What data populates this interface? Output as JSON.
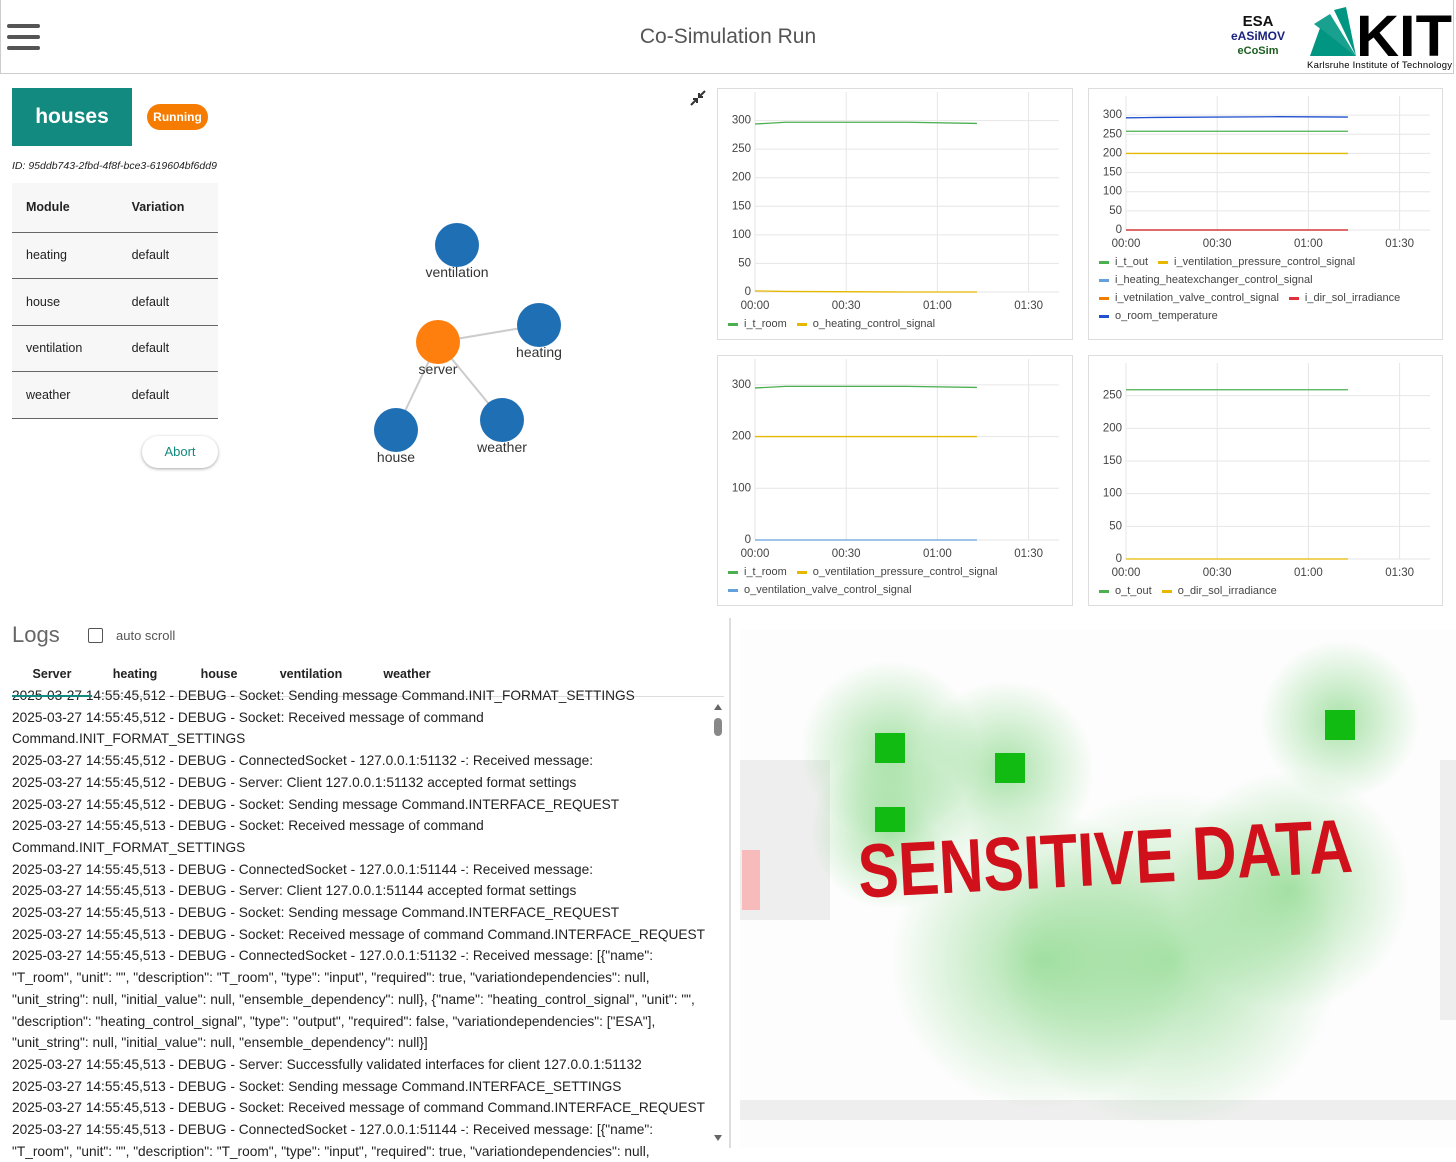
{
  "header": {
    "title": "Co-Simulation Run",
    "logo_esa": {
      "lines": [
        "ESA",
        "eASiMOV",
        "eCoSim"
      ]
    },
    "logo_kit": {
      "name": "KIT",
      "caption": "Karlsruhe Institute of Technology"
    }
  },
  "run": {
    "name": "houses",
    "status": "Running",
    "id": "ID: 95ddb743-2fbd-4f8f-bce3-619604bf6dd9",
    "table": {
      "columns": [
        "Module",
        "Variation"
      ],
      "rows": [
        [
          "heating",
          "default"
        ],
        [
          "house",
          "default"
        ],
        [
          "ventilation",
          "default"
        ],
        [
          "weather",
          "default"
        ]
      ]
    },
    "abort": "Abort"
  },
  "graph": {
    "nodes": [
      {
        "label": "ventilation",
        "color": "#1f6fb5"
      },
      {
        "label": "heating",
        "color": "#1f6fb5"
      },
      {
        "label": "server",
        "color": "#ff7f0e"
      },
      {
        "label": "house",
        "color": "#1f6fb5"
      },
      {
        "label": "weather",
        "color": "#1f6fb5"
      }
    ]
  },
  "charts": [
    {
      "type": "line",
      "xlim": [
        0,
        100
      ],
      "xticks": [
        {
          "value": 0,
          "label": "00:00"
        },
        {
          "value": 30,
          "label": "00:30"
        },
        {
          "value": 60,
          "label": "01:00"
        },
        {
          "value": 90,
          "label": "01:30"
        }
      ],
      "ylim": [
        0,
        350
      ],
      "yticks": [
        0,
        50,
        100,
        150,
        200,
        250,
        300
      ],
      "grid": true,
      "x": [
        0,
        10,
        50,
        73
      ],
      "series": [
        {
          "name": "i_t_room",
          "color": "#4caf50",
          "values": [
            294,
            297,
            297,
            295
          ]
        },
        {
          "name": "o_heating_control_signal",
          "color": "#e6b800",
          "values": [
            2,
            1,
            0,
            0
          ]
        }
      ]
    },
    {
      "type": "line",
      "xlim": [
        0,
        100
      ],
      "xticks": [
        {
          "value": 0,
          "label": "00:00"
        },
        {
          "value": 30,
          "label": "00:30"
        },
        {
          "value": 60,
          "label": "01:00"
        },
        {
          "value": 90,
          "label": "01:30"
        }
      ],
      "ylim": [
        0,
        350
      ],
      "yticks": [
        0,
        50,
        100,
        150,
        200,
        250,
        300
      ],
      "grid": true,
      "x": [
        0,
        10,
        50,
        73
      ],
      "series": [
        {
          "name": "i_t_out",
          "color": "#4caf50",
          "values": [
            258,
            258,
            258,
            258
          ]
        },
        {
          "name": "i_ventilation_pressure_control_signal",
          "color": "#e6b800",
          "values": [
            200,
            200,
            200,
            200
          ]
        },
        {
          "name": "i_heating_heatexchanger_control_signal",
          "color": "#64a0dc",
          "values": [
            0,
            0,
            0,
            0
          ]
        },
        {
          "name": "i_vetnilation_valve_control_signal",
          "color": "#f07c00",
          "values": [
            0,
            0,
            0,
            0
          ]
        },
        {
          "name": "i_dir_sol_irradiance",
          "color": "#e0303c",
          "values": [
            0,
            0,
            0,
            0
          ]
        },
        {
          "name": "o_room_temperature",
          "color": "#2050d0",
          "values": [
            293,
            294,
            296,
            295
          ]
        }
      ]
    },
    {
      "type": "line",
      "xlim": [
        0,
        100
      ],
      "xticks": [
        {
          "value": 0,
          "label": "00:00"
        },
        {
          "value": 30,
          "label": "00:30"
        },
        {
          "value": 60,
          "label": "01:00"
        },
        {
          "value": 90,
          "label": "01:30"
        }
      ],
      "ylim": [
        0,
        350
      ],
      "yticks": [
        0,
        100,
        200,
        300
      ],
      "grid": true,
      "x": [
        0,
        10,
        50,
        73
      ],
      "series": [
        {
          "name": "i_t_room",
          "color": "#4caf50",
          "values": [
            294,
            297,
            297,
            295
          ]
        },
        {
          "name": "o_ventilation_pressure_control_signal",
          "color": "#e6b800",
          "values": [
            200,
            200,
            200,
            200
          ]
        },
        {
          "name": "o_ventilation_valve_control_signal",
          "color": "#64a0dc",
          "values": [
            0,
            0,
            0,
            0
          ]
        }
      ]
    },
    {
      "type": "line",
      "xlim": [
        0,
        100
      ],
      "xticks": [
        {
          "value": 0,
          "label": "00:00"
        },
        {
          "value": 30,
          "label": "00:30"
        },
        {
          "value": 60,
          "label": "01:00"
        },
        {
          "value": 90,
          "label": "01:30"
        }
      ],
      "ylim": [
        0,
        300
      ],
      "yticks": [
        0,
        50,
        100,
        150,
        200,
        250
      ],
      "grid": true,
      "x": [
        0,
        10,
        50,
        73
      ],
      "series": [
        {
          "name": "o_t_out",
          "color": "#4caf50",
          "values": [
            259,
            259,
            259,
            259
          ]
        },
        {
          "name": "o_dir_sol_irradiance",
          "color": "#e6b800",
          "values": [
            0,
            0,
            0,
            0
          ]
        }
      ]
    }
  ],
  "logs": {
    "title": "Logs",
    "auto_scroll": "auto scroll",
    "tabs": [
      "Server",
      "heating",
      "house",
      "ventilation",
      "weather"
    ],
    "active_tab": 0,
    "lines": [
      "2025-03-27 14:55:45,512 - DEBUG - Socket: Sending message Command.INIT_FORMAT_SETTINGS",
      "2025-03-27 14:55:45,512 - DEBUG - Socket: Received message of command Command.INIT_FORMAT_SETTINGS",
      "2025-03-27 14:55:45,512 - DEBUG - ConnectedSocket - 127.0.0.1:51132 -: Received message:",
      "2025-03-27 14:55:45,512 - DEBUG - Server: Client 127.0.0.1:51132 accepted format settings",
      "2025-03-27 14:55:45,512 - DEBUG - Socket: Sending message Command.INTERFACE_REQUEST",
      "2025-03-27 14:55:45,513 - DEBUG - Socket: Received message of command Command.INIT_FORMAT_SETTINGS",
      "2025-03-27 14:55:45,513 - DEBUG - ConnectedSocket - 127.0.0.1:51144 -: Received message:",
      "2025-03-27 14:55:45,513 - DEBUG - Server: Client 127.0.0.1:51144 accepted format settings",
      "2025-03-27 14:55:45,513 - DEBUG - Socket: Sending message Command.INTERFACE_REQUEST",
      "2025-03-27 14:55:45,513 - DEBUG - Socket: Received message of command Command.INTERFACE_REQUEST",
      "2025-03-27 14:55:45,513 - DEBUG - ConnectedSocket - 127.0.0.1:51132 -: Received message: [{\"name\": \"T_room\", \"unit\": \"\", \"description\": \"T_room\", \"type\": \"input\", \"required\": true, \"variationdependencies\": null, \"unit_string\": null, \"initial_value\": null, \"ensemble_dependency\": null}, {\"name\": \"heating_control_signal\", \"unit\": \"\", \"description\": \"heating_control_signal\", \"type\": \"output\", \"required\": false, \"variationdependencies\": [\"ESA\"], \"unit_string\": null, \"initial_value\": null, \"ensemble_dependency\": null}]",
      "2025-03-27 14:55:45,513 - DEBUG - Server: Successfully validated interfaces for client 127.0.0.1:51132",
      "2025-03-27 14:55:45,513 - DEBUG - Socket: Sending message Command.INTERFACE_SETTINGS",
      "2025-03-27 14:55:45,513 - DEBUG - Socket: Received message of command Command.INTERFACE_REQUEST",
      "2025-03-27 14:55:45,513 - DEBUG - ConnectedSocket - 127.0.0.1:51144 -: Received message: [{\"name\": \"T_room\", \"unit\": \"\", \"description\": \"T_room\", \"type\": \"input\", \"required\": true, \"variationdependencies\": null,"
    ]
  },
  "redaction": {
    "label": "SENSITIVE DATA"
  }
}
